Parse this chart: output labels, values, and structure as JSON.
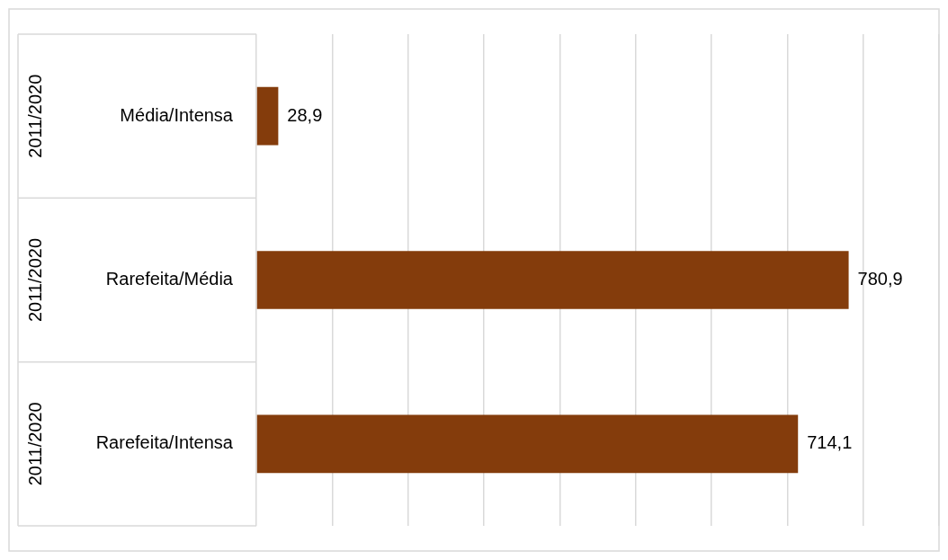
{
  "chart_data": {
    "type": "bar",
    "orientation": "horizontal",
    "categories": [
      "Média/Intensa",
      "Rarefeita/Média",
      "Rarefeita/Intensa"
    ],
    "values": [
      28.9,
      780.9,
      714.1
    ],
    "value_labels": [
      "28,9",
      "780,9",
      "714,1"
    ],
    "color": "#843c0c",
    "xlim": [
      0,
      900
    ],
    "xticks": [
      {
        "value": 0,
        "label": null
      },
      {
        "value": 100,
        "label": null
      },
      {
        "value": 200,
        "label": null
      },
      {
        "value": 300,
        "label": null
      },
      {
        "value": 400,
        "label": null
      },
      {
        "value": 500,
        "label": null
      },
      {
        "value": 600,
        "label": null
      },
      {
        "value": 700,
        "label": null
      },
      {
        "value": 800,
        "label": null
      },
      {
        "value": 900,
        "label": null
      }
    ],
    "annotations": [
      "2011/2020",
      "2011/2020",
      "2011/2020"
    ],
    "grid": "x",
    "legend": false,
    "tick_labels": "y"
  }
}
